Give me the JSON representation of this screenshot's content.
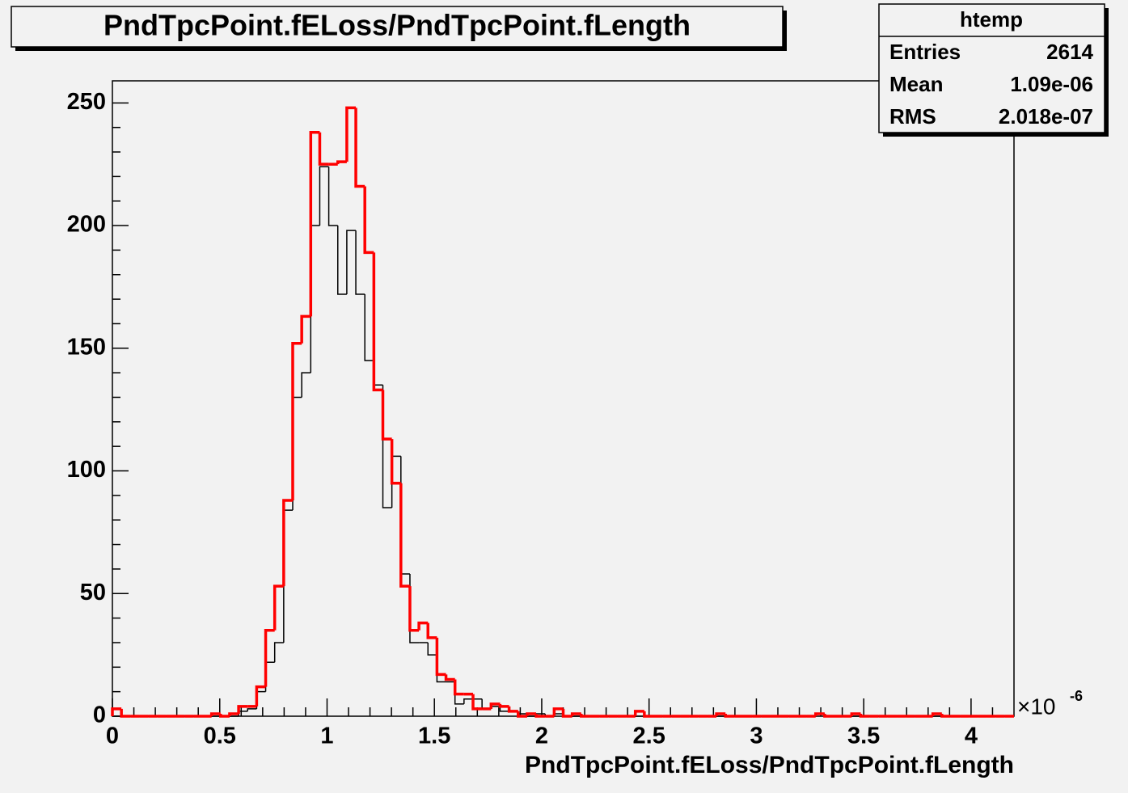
{
  "chart_data": {
    "type": "histogram",
    "title": "PndTpcPoint.fELoss/PndTpcPoint.fLength",
    "x_label": "PndTpcPoint.fELoss/PndTpcPoint.fLength",
    "x_multiplier": "×10",
    "x_multiplier_exponent": "-6",
    "stats": {
      "name": "htemp",
      "rows": [
        [
          "Entries",
          "2614"
        ],
        [
          "Mean",
          "1.09e-06"
        ],
        [
          "RMS",
          "2.018e-07"
        ]
      ]
    },
    "bins": [
      0,
      0.042,
      0.084,
      0.126,
      0.168,
      0.21,
      0.252,
      0.294,
      0.336,
      0.378,
      0.42,
      0.462,
      0.504,
      0.546,
      0.588,
      0.63,
      0.672,
      0.714,
      0.756,
      0.798,
      0.84,
      0.882,
      0.924,
      0.966,
      1.008,
      1.05,
      1.092,
      1.134,
      1.176,
      1.218,
      1.26,
      1.302,
      1.344,
      1.386,
      1.428,
      1.47,
      1.512,
      1.554,
      1.596,
      1.638,
      1.68,
      1.722,
      1.764,
      1.806,
      1.848,
      1.89,
      1.932,
      1.974,
      2.016,
      2.058,
      2.1,
      2.142,
      2.184,
      2.226,
      2.268,
      2.31,
      2.352,
      2.394,
      2.436,
      2.478,
      2.52,
      2.562,
      2.604,
      2.646,
      2.688,
      2.73,
      2.772,
      2.814,
      2.856,
      2.898,
      2.94,
      2.982,
      3.024,
      3.066,
      3.108,
      3.15,
      3.192,
      3.234,
      3.276,
      3.318,
      3.36,
      3.402,
      3.444,
      3.486,
      3.528,
      3.57,
      3.612,
      3.654,
      3.696,
      3.738,
      3.78,
      3.822,
      3.864,
      3.906,
      3.948,
      3.99,
      4.032,
      4.074,
      4.116,
      4.158,
      4.2
    ],
    "series": [
      {
        "color": "#000000",
        "width": 1.5,
        "values": [
          0,
          0,
          0,
          0,
          0,
          0,
          0,
          0,
          0,
          0,
          0,
          0,
          0,
          0,
          2,
          3,
          10,
          22,
          30,
          84,
          130,
          140,
          200,
          224,
          200,
          172,
          198,
          172,
          145,
          135,
          85,
          106,
          58,
          30,
          30,
          25,
          14,
          14,
          5,
          7,
          7,
          3,
          4,
          2,
          2,
          1,
          0,
          1,
          0,
          1,
          0,
          0,
          0,
          0,
          0,
          0,
          0,
          0,
          0,
          0,
          0,
          0,
          0,
          0,
          0,
          0,
          0,
          0,
          0,
          0,
          0,
          0,
          0,
          0,
          0,
          0,
          0,
          0,
          1,
          0,
          0,
          0,
          0,
          0,
          0,
          0,
          0,
          0,
          0,
          0,
          0,
          0,
          0,
          0,
          0,
          0,
          0,
          0,
          0,
          0
        ]
      },
      {
        "color": "#ff0000",
        "width": 3.5,
        "values": [
          3,
          0,
          0,
          0,
          0,
          0,
          0,
          0,
          0,
          0,
          0,
          1,
          0,
          1,
          4,
          4,
          12,
          35,
          53,
          88,
          152,
          163,
          238,
          225,
          225,
          226,
          248,
          216,
          189,
          133,
          113,
          95,
          53,
          35,
          38,
          32,
          17,
          15,
          9,
          9,
          3,
          3,
          5,
          4,
          2,
          0,
          1,
          0,
          0,
          3,
          0,
          1,
          0,
          0,
          0,
          0,
          0,
          0,
          2,
          0,
          0,
          0,
          0,
          0,
          0,
          0,
          0,
          1,
          0,
          0,
          0,
          0,
          0,
          0,
          0,
          0,
          0,
          0,
          1,
          0,
          0,
          0,
          1,
          0,
          0,
          0,
          0,
          0,
          0,
          0,
          0,
          1,
          0,
          0,
          0,
          0,
          0,
          0,
          0,
          0
        ]
      }
    ],
    "xlim": [
      0,
      4.2
    ],
    "ylim": [
      0,
      259
    ],
    "xticks": [
      0,
      0.5,
      1,
      1.5,
      2,
      2.5,
      3,
      3.5,
      4
    ],
    "yticks": [
      0,
      50,
      100,
      150,
      200,
      250
    ]
  }
}
